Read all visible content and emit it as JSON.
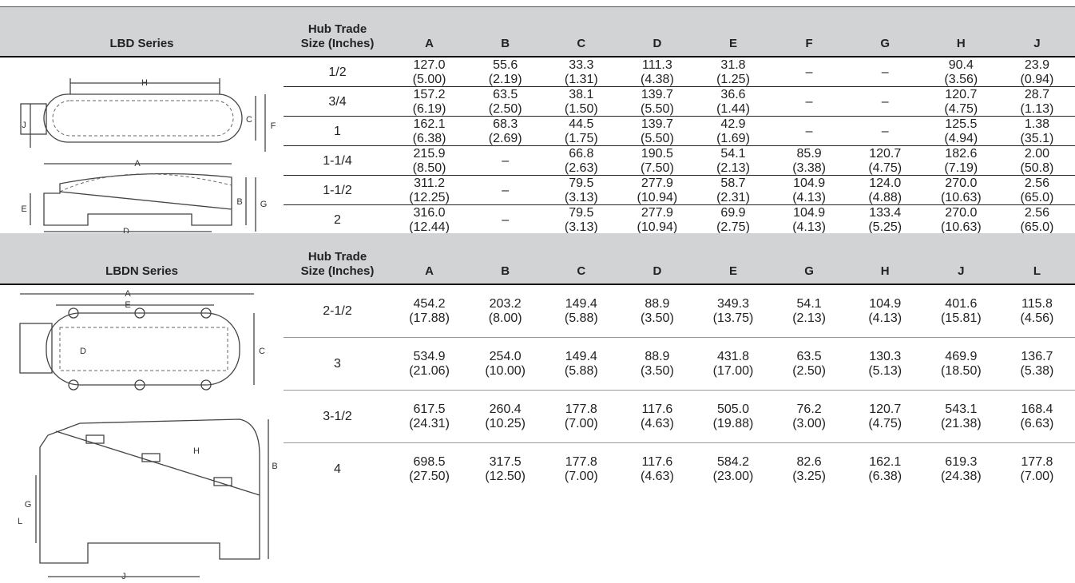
{
  "tables": [
    {
      "series": "LBD Series",
      "hub_header": [
        "Hub Trade",
        "Size (Inches)"
      ],
      "columns": [
        "A",
        "B",
        "C",
        "D",
        "E",
        "F",
        "G",
        "H",
        "J"
      ],
      "rows": [
        {
          "size": "1/2",
          "cells": [
            [
              "127.0",
              "(5.00)"
            ],
            [
              "55.6",
              "(2.19)"
            ],
            [
              "33.3",
              "(1.31)"
            ],
            [
              "111.3",
              "(4.38)"
            ],
            [
              "31.8",
              "(1.25)"
            ],
            "–",
            "–",
            [
              "90.4",
              "(3.56)"
            ],
            [
              "23.9",
              "(0.94)"
            ]
          ]
        },
        {
          "size": "3/4",
          "cells": [
            [
              "157.2",
              "(6.19)"
            ],
            [
              "63.5",
              "(2.50)"
            ],
            [
              "38.1",
              "(1.50)"
            ],
            [
              "139.7",
              "(5.50)"
            ],
            [
              "36.6",
              "(1.44)"
            ],
            "–",
            "–",
            [
              "120.7",
              "(4.75)"
            ],
            [
              "28.7",
              "(1.13)"
            ]
          ]
        },
        {
          "size": "1",
          "cells": [
            [
              "162.1",
              "(6.38)"
            ],
            [
              "68.3",
              "(2.69)"
            ],
            [
              "44.5",
              "(1.75)"
            ],
            [
              "139.7",
              "(5.50)"
            ],
            [
              "42.9",
              "(1.69)"
            ],
            "–",
            "–",
            [
              "125.5",
              "(4.94)"
            ],
            [
              "1.38",
              "(35.1)"
            ]
          ]
        },
        {
          "size": "1-1/4",
          "cells": [
            [
              "215.9",
              "(8.50)"
            ],
            "–",
            [
              "66.8",
              "(2.63)"
            ],
            [
              "190.5",
              "(7.50)"
            ],
            [
              "54.1",
              "(2.13)"
            ],
            [
              "85.9",
              "(3.38)"
            ],
            [
              "120.7",
              "(4.75)"
            ],
            [
              "182.6",
              "(7.19)"
            ],
            [
              "2.00",
              "(50.8)"
            ]
          ]
        },
        {
          "size": "1-1/2",
          "cells": [
            [
              "311.2",
              "(12.25)"
            ],
            "–",
            [
              "79.5",
              "(3.13)"
            ],
            [
              "277.9",
              "(10.94)"
            ],
            [
              "58.7",
              "(2.31)"
            ],
            [
              "104.9",
              "(4.13)"
            ],
            [
              "124.0",
              "(4.88)"
            ],
            [
              "270.0",
              "(10.63)"
            ],
            [
              "2.56",
              "(65.0)"
            ]
          ]
        },
        {
          "size": "2",
          "cells": [
            [
              "316.0",
              "(12.44)"
            ],
            "–",
            [
              "79.5",
              "(3.13)"
            ],
            [
              "277.9",
              "(10.94)"
            ],
            [
              "69.9",
              "(2.75)"
            ],
            [
              "104.9",
              "(4.13)"
            ],
            [
              "133.4",
              "(5.25)"
            ],
            [
              "270.0",
              "(10.63)"
            ],
            [
              "2.56",
              "(65.0)"
            ]
          ]
        }
      ]
    },
    {
      "series": "LBDN Series",
      "hub_header": [
        "Hub Trade",
        "Size (Inches)"
      ],
      "columns": [
        "A",
        "B",
        "C",
        "D",
        "E",
        "G",
        "H",
        "J",
        "L"
      ],
      "rows": [
        {
          "size": "2-1/2",
          "cells": [
            [
              "454.2",
              "(17.88)"
            ],
            [
              "203.2",
              "(8.00)"
            ],
            [
              "149.4",
              "(5.88)"
            ],
            [
              "88.9",
              "(3.50)"
            ],
            [
              "349.3",
              "(13.75)"
            ],
            [
              "54.1",
              "(2.13)"
            ],
            [
              "104.9",
              "(4.13)"
            ],
            [
              "401.6",
              "(15.81)"
            ],
            [
              "115.8",
              "(4.56)"
            ]
          ]
        },
        {
          "size": "3",
          "cells": [
            [
              "534.9",
              "(21.06)"
            ],
            [
              "254.0",
              "(10.00)"
            ],
            [
              "149.4",
              "(5.88)"
            ],
            [
              "88.9",
              "(3.50)"
            ],
            [
              "431.8",
              "(17.00)"
            ],
            [
              "63.5",
              "(2.50)"
            ],
            [
              "130.3",
              "(5.13)"
            ],
            [
              "469.9",
              "(18.50)"
            ],
            [
              "136.7",
              "(5.38)"
            ]
          ]
        },
        {
          "size": "3-1/2",
          "cells": [
            [
              "617.5",
              "(24.31)"
            ],
            [
              "260.4",
              "(10.25)"
            ],
            [
              "177.8",
              "(7.00)"
            ],
            [
              "117.6",
              "(4.63)"
            ],
            [
              "505.0",
              "(19.88)"
            ],
            [
              "76.2",
              "(3.00)"
            ],
            [
              "120.7",
              "(4.75)"
            ],
            [
              "543.1",
              "(21.38)"
            ],
            [
              "168.4",
              "(6.63)"
            ]
          ]
        },
        {
          "size": "4",
          "cells": [
            [
              "698.5",
              "(27.50)"
            ],
            [
              "317.5",
              "(12.50)"
            ],
            [
              "177.8",
              "(7.00)"
            ],
            [
              "117.6",
              "(4.63)"
            ],
            [
              "584.2",
              "(23.00)"
            ],
            [
              "82.6",
              "(3.25)"
            ],
            [
              "162.1",
              "(6.38)"
            ],
            [
              "619.3",
              "(24.38)"
            ],
            [
              "177.8",
              "(7.00)"
            ]
          ]
        }
      ]
    }
  ],
  "diagrams": [
    {
      "labels": [
        "H",
        "J",
        "C",
        "F",
        "A",
        "E",
        "B",
        "G",
        "D"
      ]
    },
    {
      "labels": [
        "A",
        "E",
        "D",
        "C",
        "H",
        "B",
        "G",
        "L",
        "J"
      ]
    }
  ]
}
